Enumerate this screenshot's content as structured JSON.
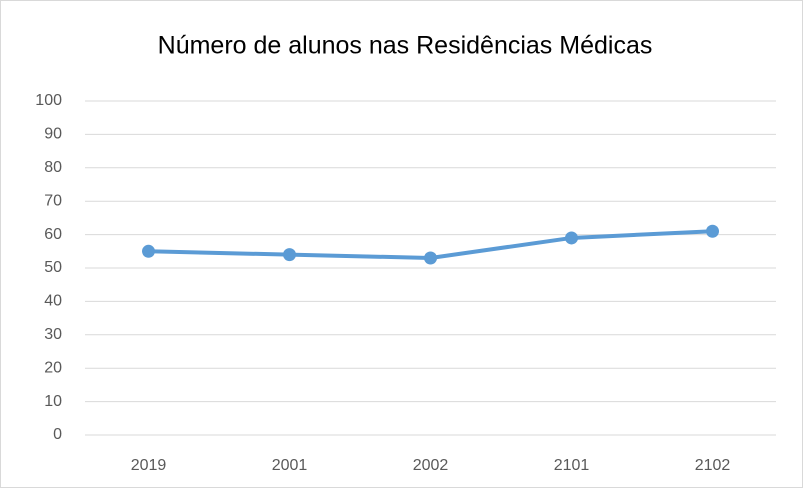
{
  "chart_data": {
    "type": "line",
    "title": "Número de alunos nas Residências Médicas",
    "categories": [
      "2019",
      "2001",
      "2002",
      "2101",
      "2102"
    ],
    "series": [
      {
        "name": "Número de alunos",
        "color": "#5b9bd5",
        "values": [
          55,
          54,
          53,
          59,
          61
        ]
      }
    ],
    "ylim": [
      0,
      100
    ],
    "yticks": [
      0,
      10,
      20,
      30,
      40,
      50,
      60,
      70,
      80,
      90,
      100
    ],
    "grid": true
  }
}
